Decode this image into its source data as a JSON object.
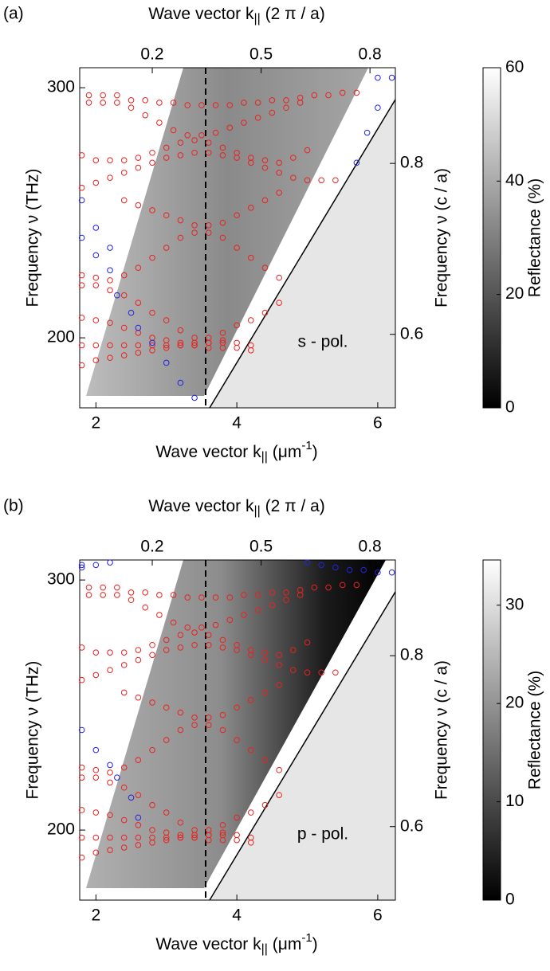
{
  "chart_data": [
    {
      "type": "scatter",
      "panel_label": "(a)",
      "annotation": "s - pol.",
      "xlabel": [
        {
          "t": "Wave vector k"
        },
        {
          "sub": "||"
        },
        {
          "t": " (μm"
        },
        {
          "sup": "-1"
        },
        {
          "t": ")"
        }
      ],
      "x2label": [
        {
          "t": "Wave vector k"
        },
        {
          "sub": "||"
        },
        {
          "t": " (2 π / a)"
        }
      ],
      "ylabel": "Frequency ν (THz)",
      "y2label": "Frequency ν (c / a)",
      "xlim": [
        1.77,
        6.25
      ],
      "xticks": [
        2,
        4,
        6
      ],
      "x2lim": [
        0,
        0.87
      ],
      "x2ticks": [
        0.2,
        0.5,
        0.8
      ],
      "ylim": [
        172,
        308
      ],
      "yticks": [
        200,
        300
      ],
      "y2lim": [
        0.514,
        0.912
      ],
      "y2ticks": [
        0.6,
        0.8
      ],
      "colorbar": {
        "label": "Reflectance (%)",
        "zlim": [
          0,
          60
        ],
        "zticks": [
          0,
          20,
          40,
          60
        ]
      },
      "series": [
        {
          "color": "#e8231f",
          "x": [
            1.9,
            2.1,
            2.3,
            2.5,
            2.7,
            2.9,
            3.1,
            3.3,
            3.5,
            3.7,
            3.9,
            4.1,
            4.3,
            4.5,
            4.7,
            4.9,
            5.1,
            5.3,
            5.5,
            5.7
          ],
          "y": [
            297,
            297,
            297,
            295,
            295,
            294,
            294,
            293,
            293,
            293,
            293,
            294,
            294,
            295,
            295,
            296,
            297,
            297,
            298,
            298
          ]
        },
        {
          "color": "#e8231f",
          "x": [
            1.9,
            2.1,
            2.3,
            2.5,
            2.7,
            2.9,
            3.1,
            3.3,
            3.5,
            3.7,
            3.9,
            4.1,
            4.3,
            4.5,
            4.7,
            4.9
          ],
          "y": [
            294,
            294,
            294,
            292,
            289,
            286,
            283,
            281,
            281,
            282,
            284,
            286,
            288,
            290,
            292,
            294
          ]
        },
        {
          "color": "#e8231f",
          "x": [
            1.8,
            2.0,
            2.2,
            2.4,
            2.6,
            2.8,
            3.0,
            3.2,
            3.4,
            3.6,
            3.8,
            4.0,
            4.2,
            4.4,
            4.6,
            4.8,
            5.0
          ],
          "y": [
            273,
            271,
            271,
            271,
            272,
            274,
            276,
            278,
            279,
            278,
            276,
            274,
            272,
            271,
            270,
            272,
            275
          ]
        },
        {
          "color": "#e8231f",
          "x": [
            1.8,
            2.0,
            2.2,
            2.4,
            2.6,
            2.8,
            3.0,
            3.2,
            3.4,
            3.6,
            3.8,
            4.0,
            4.2,
            4.4,
            4.6,
            4.8,
            5.0,
            5.2,
            5.4
          ],
          "y": [
            260,
            262,
            264,
            266,
            268,
            270,
            272,
            273,
            274,
            274,
            273,
            272,
            270,
            268,
            266,
            264,
            263,
            263,
            263
          ]
        },
        {
          "color": "#e8231f",
          "x": [
            2.4,
            2.6,
            2.8,
            3.0,
            3.2,
            3.4,
            3.6,
            3.8,
            4.0,
            4.2,
            4.4,
            4.6
          ],
          "y": [
            255,
            253,
            251,
            249,
            247,
            245,
            245,
            246,
            249,
            252,
            255,
            258
          ]
        },
        {
          "color": "#e8231f",
          "x": [
            1.8,
            2.0,
            2.2,
            2.4,
            2.6,
            2.8,
            3.0,
            3.2,
            3.4,
            3.6,
            3.8,
            4.0,
            4.2,
            4.4,
            4.6
          ],
          "y": [
            225,
            224,
            223,
            225,
            228,
            232,
            236,
            240,
            242,
            242,
            240,
            236,
            232,
            228,
            224
          ]
        },
        {
          "color": "#e8231f",
          "x": [
            1.8,
            2.0,
            2.2,
            2.4,
            2.6,
            2.8,
            3.0,
            3.2,
            3.4,
            3.6,
            3.8,
            4.0,
            4.2,
            4.4,
            4.6
          ],
          "y": [
            221,
            221,
            219,
            217,
            214,
            210,
            207,
            203,
            200,
            200,
            202,
            205,
            207,
            210,
            214
          ]
        },
        {
          "color": "#e8231f",
          "x": [
            1.8,
            2.0,
            2.2,
            2.4,
            2.6,
            2.8,
            3.0,
            3.2,
            3.4,
            3.6,
            3.8,
            4.0,
            4.2
          ],
          "y": [
            208,
            207,
            206,
            204,
            202,
            200,
            199,
            198,
            198,
            198,
            198,
            198,
            197
          ]
        },
        {
          "color": "#e8231f",
          "x": [
            1.8,
            2.0,
            2.2,
            2.4,
            2.6,
            2.8,
            3.0,
            3.2,
            3.4,
            3.6,
            3.8,
            4.0,
            4.2
          ],
          "y": [
            197,
            197,
            197,
            197,
            197,
            197,
            197,
            197,
            197,
            196,
            196,
            196,
            195
          ]
        },
        {
          "color": "#e8231f",
          "x": [
            1.8,
            2.0,
            2.2,
            2.4,
            2.6,
            2.8,
            3.0,
            3.2,
            3.4,
            3.6,
            3.8
          ],
          "y": [
            189,
            191,
            192,
            193,
            194,
            195,
            196,
            197,
            197,
            198,
            199
          ]
        },
        {
          "color": "#2323e0",
          "x": [
            1.8,
            1.8,
            2.0,
            2.0,
            2.2,
            2.2,
            2.3,
            2.5,
            2.6,
            2.8,
            3.0,
            3.2,
            3.4,
            5.7,
            5.85,
            6.0,
            6.0,
            6.2
          ],
          "y": [
            255,
            240,
            244,
            233,
            236,
            227,
            217,
            210,
            204,
            198,
            190,
            182,
            176,
            270,
            282,
            292,
            304,
            304
          ]
        }
      ]
    },
    {
      "type": "scatter",
      "panel_label": "(b)",
      "annotation": "p - pol.",
      "xlabel": [
        {
          "t": "Wave vector k"
        },
        {
          "sub": "||"
        },
        {
          "t": " (μm"
        },
        {
          "sup": "-1"
        },
        {
          "t": ")"
        }
      ],
      "x2label": [
        {
          "t": "Wave vector k"
        },
        {
          "sub": "||"
        },
        {
          "t": " (2 π / a)"
        }
      ],
      "ylabel": "Frequency ν (THz)",
      "y2label": "Frequency ν (c / a)",
      "xlim": [
        1.77,
        6.25
      ],
      "xticks": [
        2,
        4,
        6
      ],
      "x2lim": [
        0,
        0.87
      ],
      "x2ticks": [
        0.2,
        0.5,
        0.8
      ],
      "ylim": [
        172,
        308
      ],
      "yticks": [
        200,
        300
      ],
      "y2lim": [
        0.514,
        0.912
      ],
      "y2ticks": [
        0.6,
        0.8
      ],
      "colorbar": {
        "label": "Reflectance (%)",
        "zlim": [
          0,
          34.6
        ],
        "zticks": [
          0,
          10,
          20,
          30
        ]
      },
      "series": [
        {
          "color": "#e8231f",
          "x": [
            1.9,
            2.1,
            2.3,
            2.5,
            2.7,
            2.9,
            3.1,
            3.3,
            3.5,
            3.7,
            3.9,
            4.1,
            4.3,
            4.5,
            4.7,
            4.9,
            5.1,
            5.3,
            5.5,
            5.7
          ],
          "y": [
            297,
            297,
            297,
            295,
            295,
            294,
            294,
            293,
            293,
            293,
            293,
            294,
            294,
            295,
            295,
            296,
            297,
            297,
            298,
            298
          ]
        },
        {
          "color": "#e8231f",
          "x": [
            1.9,
            2.1,
            2.3,
            2.5,
            2.7,
            2.9,
            3.1,
            3.3,
            3.5,
            3.7,
            3.9,
            4.1,
            4.3,
            4.5,
            4.7,
            4.9
          ],
          "y": [
            294,
            294,
            294,
            292,
            289,
            286,
            283,
            281,
            281,
            282,
            284,
            286,
            288,
            290,
            292,
            294
          ]
        },
        {
          "color": "#e8231f",
          "x": [
            1.8,
            2.0,
            2.2,
            2.4,
            2.6,
            2.8,
            3.0,
            3.2,
            3.4,
            3.6,
            3.8,
            4.0,
            4.2,
            4.4,
            4.6,
            4.8,
            5.0
          ],
          "y": [
            273,
            271,
            271,
            271,
            272,
            274,
            276,
            278,
            279,
            278,
            276,
            274,
            272,
            271,
            270,
            272,
            275
          ]
        },
        {
          "color": "#e8231f",
          "x": [
            1.8,
            2.0,
            2.2,
            2.4,
            2.6,
            2.8,
            3.0,
            3.2,
            3.4,
            3.6,
            3.8,
            4.0,
            4.2,
            4.4,
            4.6,
            4.8,
            5.0,
            5.2,
            5.4
          ],
          "y": [
            260,
            262,
            264,
            266,
            268,
            270,
            272,
            273,
            274,
            274,
            273,
            272,
            270,
            268,
            266,
            264,
            263,
            263,
            263
          ]
        },
        {
          "color": "#e8231f",
          "x": [
            2.4,
            2.6,
            2.8,
            3.0,
            3.2,
            3.4,
            3.6,
            3.8,
            4.0,
            4.2,
            4.4,
            4.6
          ],
          "y": [
            255,
            253,
            251,
            249,
            247,
            245,
            245,
            246,
            249,
            252,
            255,
            258
          ]
        },
        {
          "color": "#e8231f",
          "x": [
            1.8,
            2.0,
            2.2,
            2.4,
            2.6,
            2.8,
            3.0,
            3.2,
            3.4,
            3.6,
            3.8,
            4.0,
            4.2,
            4.4,
            4.6
          ],
          "y": [
            225,
            224,
            223,
            225,
            228,
            232,
            236,
            240,
            242,
            242,
            240,
            236,
            232,
            228,
            224
          ]
        },
        {
          "color": "#e8231f",
          "x": [
            1.8,
            2.0,
            2.2,
            2.4,
            2.6,
            2.8,
            3.0,
            3.2,
            3.4,
            3.6,
            3.8,
            4.0,
            4.2,
            4.4,
            4.6
          ],
          "y": [
            221,
            221,
            219,
            217,
            214,
            210,
            207,
            203,
            200,
            200,
            202,
            205,
            207,
            210,
            214
          ]
        },
        {
          "color": "#e8231f",
          "x": [
            1.8,
            2.0,
            2.2,
            2.4,
            2.6,
            2.8,
            3.0,
            3.2,
            3.4,
            3.6,
            3.8,
            4.0,
            4.2
          ],
          "y": [
            208,
            207,
            206,
            204,
            202,
            200,
            199,
            198,
            198,
            198,
            198,
            198,
            197
          ]
        },
        {
          "color": "#e8231f",
          "x": [
            1.8,
            2.0,
            2.2,
            2.4,
            2.6,
            2.8,
            3.0,
            3.2,
            3.4,
            3.6,
            3.8,
            4.0,
            4.2
          ],
          "y": [
            197,
            197,
            197,
            197,
            197,
            197,
            197,
            197,
            197,
            196,
            196,
            196,
            195
          ]
        },
        {
          "color": "#e8231f",
          "x": [
            1.8,
            2.0,
            2.2,
            2.4,
            2.6,
            2.8,
            3.0,
            3.2,
            3.4,
            3.6,
            3.8
          ],
          "y": [
            189,
            191,
            192,
            193,
            194,
            195,
            196,
            197,
            197,
            198,
            199
          ]
        },
        {
          "color": "#2323e0",
          "x": [
            1.8,
            1.8,
            2.0,
            2.2,
            1.8,
            2.0,
            2.2,
            2.3,
            2.5,
            2.6,
            5.0,
            5.2,
            5.4,
            5.6,
            5.8,
            6.0,
            6.2
          ],
          "y": [
            306,
            305,
            306,
            307,
            240,
            232,
            226,
            221,
            213,
            205,
            307,
            306,
            305,
            304,
            304,
            303,
            303
          ]
        }
      ]
    }
  ]
}
